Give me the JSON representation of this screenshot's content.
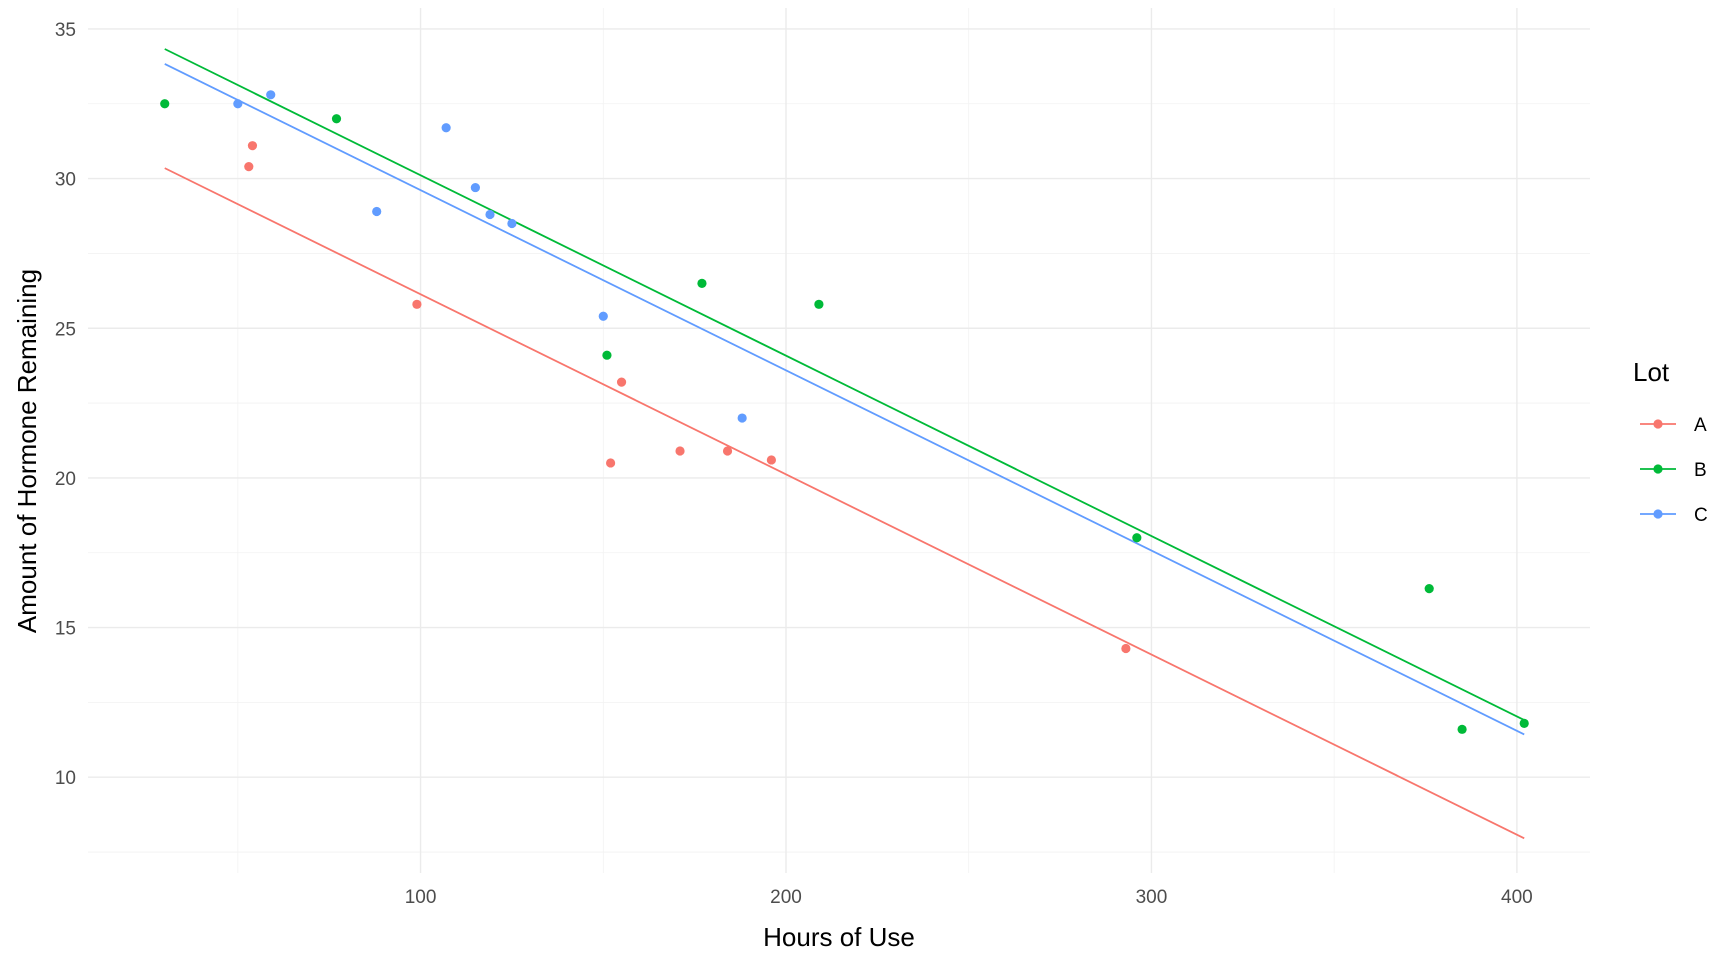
{
  "chart_data": {
    "type": "scatter",
    "title": "",
    "xlabel": "Hours of Use",
    "ylabel": "Amount of Hormone Remaining",
    "xlim": [
      9,
      420
    ],
    "ylim": [
      6.8,
      35.7
    ],
    "x_ticks": [
      100,
      200,
      300,
      400
    ],
    "y_ticks": [
      10,
      15,
      20,
      25,
      30,
      35
    ],
    "grid": true,
    "legend": {
      "title": "Lot",
      "position": "right"
    },
    "series": [
      {
        "name": "A",
        "color": "#F8766D",
        "points": [
          {
            "x": 53,
            "y": 30.4
          },
          {
            "x": 54,
            "y": 31.1
          },
          {
            "x": 99,
            "y": 25.8
          },
          {
            "x": 152,
            "y": 20.5
          },
          {
            "x": 155,
            "y": 23.2
          },
          {
            "x": 171,
            "y": 20.9
          },
          {
            "x": 184,
            "y": 20.9
          },
          {
            "x": 196,
            "y": 20.6
          },
          {
            "x": 293,
            "y": 14.3
          }
        ],
        "fit_line": {
          "x": [
            30,
            402
          ],
          "y": [
            30.35,
            7.96
          ]
        }
      },
      {
        "name": "B",
        "color": "#00BA38",
        "points": [
          {
            "x": 30,
            "y": 32.5
          },
          {
            "x": 77,
            "y": 32.0
          },
          {
            "x": 151,
            "y": 24.1
          },
          {
            "x": 177,
            "y": 26.5
          },
          {
            "x": 209,
            "y": 25.8
          },
          {
            "x": 296,
            "y": 18.0
          },
          {
            "x": 376,
            "y": 16.3
          },
          {
            "x": 385,
            "y": 11.6
          },
          {
            "x": 402,
            "y": 11.8
          }
        ],
        "fit_line": {
          "x": [
            30,
            402
          ],
          "y": [
            34.33,
            11.91
          ]
        }
      },
      {
        "name": "C",
        "color": "#619CFF",
        "points": [
          {
            "x": 50,
            "y": 32.5
          },
          {
            "x": 59,
            "y": 32.8
          },
          {
            "x": 88,
            "y": 28.9
          },
          {
            "x": 107,
            "y": 31.7
          },
          {
            "x": 115,
            "y": 29.7
          },
          {
            "x": 119,
            "y": 28.8
          },
          {
            "x": 125,
            "y": 28.5
          },
          {
            "x": 150,
            "y": 25.4
          },
          {
            "x": 188,
            "y": 22.0
          }
        ],
        "fit_line": {
          "x": [
            30,
            402
          ],
          "y": [
            33.83,
            11.43
          ]
        }
      }
    ]
  }
}
